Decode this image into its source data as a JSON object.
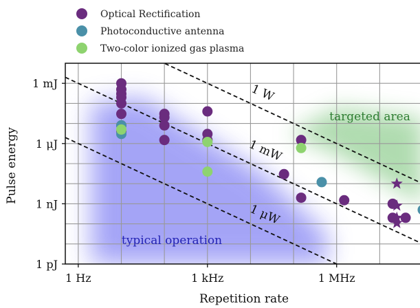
{
  "chart_data": {
    "type": "scatter",
    "title": "",
    "xlabel": "Repetition rate",
    "ylabel": "Pulse energy",
    "x_scale": "log",
    "y_scale": "log",
    "x_unit": "Hz",
    "y_unit": "J",
    "xlim": [
      0.5,
      100000000
    ],
    "ylim": [
      1e-12,
      0.01
    ],
    "grid": true,
    "legend_position": "top-left, above plot",
    "x_ticks": [
      {
        "value": 1,
        "label": "1 Hz"
      },
      {
        "value": 1000,
        "label": "1 kHz"
      },
      {
        "value": 1000000,
        "label": "1 MHz"
      }
    ],
    "y_ticks": [
      {
        "value": 1e-12,
        "label": "1 pJ"
      },
      {
        "value": 1e-09,
        "label": "1 nJ"
      },
      {
        "value": 1e-06,
        "label": "1 μJ"
      },
      {
        "value": 0.001,
        "label": "1 mJ"
      }
    ],
    "series": [
      {
        "name": "Optical Rectification",
        "color": "#6a2c7e",
        "marker": "circle",
        "points": [
          {
            "x": 10,
            "y": 0.001
          },
          {
            "x": 10,
            "y": 0.0005
          },
          {
            "x": 10,
            "y": 0.0003
          },
          {
            "x": 10,
            "y": 0.0002
          },
          {
            "x": 10,
            "y": 0.0001
          },
          {
            "x": 10,
            "y": 3e-05
          },
          {
            "x": 10,
            "y": 8e-06
          },
          {
            "x": 10,
            "y": 4e-06
          },
          {
            "x": 100,
            "y": 3e-05
          },
          {
            "x": 100,
            "y": 2e-05
          },
          {
            "x": 100,
            "y": 8e-06
          },
          {
            "x": 100,
            "y": 1.5e-06
          },
          {
            "x": 1000,
            "y": 4e-05
          },
          {
            "x": 1000,
            "y": 3e-06
          },
          {
            "x": 1000,
            "y": 1.5e-06
          },
          {
            "x": 60000,
            "y": 3e-08
          },
          {
            "x": 150000,
            "y": 1.5e-06
          },
          {
            "x": 150000,
            "y": 2e-09
          },
          {
            "x": 1500000,
            "y": 1.5e-09
          },
          {
            "x": 20000000,
            "y": 1e-09
          },
          {
            "x": 20000000,
            "y": 2e-10
          },
          {
            "x": 40000000,
            "y": 2e-10
          }
        ]
      },
      {
        "name": "Optical Rectification (star markers)",
        "color": "#6a2c7e",
        "marker": "star",
        "points": [
          {
            "x": 25000000,
            "y": 1e-08
          },
          {
            "x": 25000000,
            "y": 8e-10
          },
          {
            "x": 25000000,
            "y": 2e-10
          },
          {
            "x": 25000000,
            "y": 1.1e-10
          }
        ]
      },
      {
        "name": "Photoconductive antenna",
        "color": "#4a90a8",
        "marker": "circle",
        "points": [
          {
            "x": 10,
            "y": 8e-06
          },
          {
            "x": 10,
            "y": 3e-06
          },
          {
            "x": 450000,
            "y": 1.2e-08
          },
          {
            "x": 100000000,
            "y": 5e-10
          }
        ]
      },
      {
        "name": "Two-color ionized gas plasma",
        "color": "#8ed36f",
        "marker": "circle",
        "points": [
          {
            "x": 10,
            "y": 5e-06
          },
          {
            "x": 1000,
            "y": 1.2e-06
          },
          {
            "x": 1000,
            "y": 4e-08
          },
          {
            "x": 150000,
            "y": 6e-07
          }
        ]
      }
    ],
    "reference_lines": [
      {
        "label": "1 W",
        "power_watts": 1,
        "style": "dashed"
      },
      {
        "label": "1 mW",
        "power_watts": 0.001,
        "style": "dashed"
      },
      {
        "label": "1 μW",
        "power_watts": 1e-06,
        "style": "dashed"
      }
    ],
    "annotations": [
      {
        "text": "targeted area",
        "color": "#2e7d32"
      },
      {
        "text": "typical operation",
        "color": "#2323b4"
      }
    ],
    "regions": [
      {
        "name": "targeted area",
        "color": "#6fbf6f"
      },
      {
        "name": "typical operation",
        "color": "#5a5af0"
      }
    ]
  }
}
